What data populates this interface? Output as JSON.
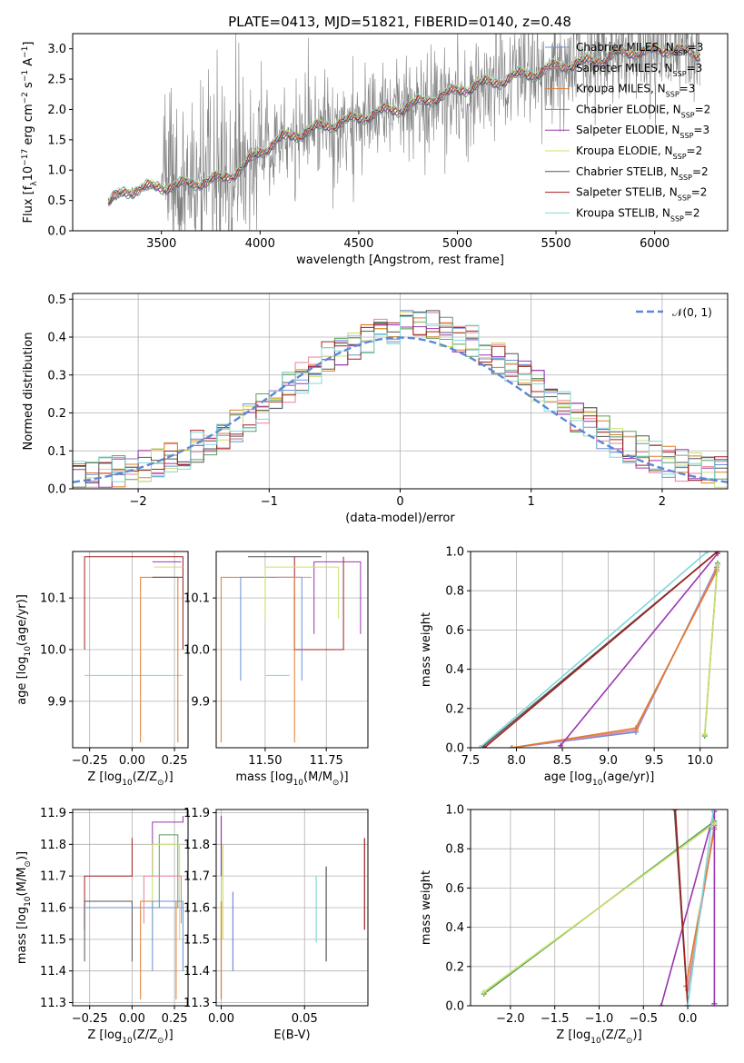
{
  "figure_title": "PLATE=0413, MJD=51821, FIBERID=0140, z=0.48",
  "colors": {
    "Chabrier MILES": "#6a8fd8",
    "Salpeter MILES": "#e8829a",
    "Kroupa MILES": "#e07b2a",
    "Chabrier ELODIE": "#5b9e5b",
    "Salpeter ELODIE": "#9b35b0",
    "Kroupa ELODIE": "#c8e06a",
    "Chabrier STELIB": "#555555",
    "Salpeter STELIB": "#a02020",
    "Kroupa STELIB": "#80d8d8",
    "data": "#808080",
    "normal": "#5b88d8"
  },
  "chart_data": [
    {
      "id": "spectrum",
      "type": "line",
      "xlabel": "wavelength [Angstrom, rest frame]",
      "ylabel": "Flux [f_λ10^-17 erg cm^-2 s^-1 A^-1]",
      "xlim": [
        3050,
        6370
      ],
      "ylim": [
        0,
        3.25
      ],
      "xticks": [
        3500,
        4000,
        4500,
        5000,
        5500,
        6000
      ],
      "yticks": [
        0.0,
        0.5,
        1.0,
        1.5,
        2.0,
        2.5,
        3.0
      ],
      "grid": false,
      "legend_position": "top-right",
      "legend": [
        {
          "model": "Chabrier MILES",
          "nssp": "3"
        },
        {
          "model": "Salpeter MILES",
          "nssp": "3"
        },
        {
          "model": "Kroupa MILES",
          "nssp": "3"
        },
        {
          "model": "Chabrier ELODIE",
          "nssp": "2"
        },
        {
          "model": "Salpeter ELODIE",
          "nssp": "3"
        },
        {
          "model": "Kroupa ELODIE",
          "nssp": "2"
        },
        {
          "model": "Chabrier STELIB",
          "nssp": "2"
        },
        {
          "model": "Salpeter STELIB",
          "nssp": "2"
        },
        {
          "model": "Kroupa STELIB",
          "nssp": "2"
        }
      ],
      "model_profile": {
        "x": [
          3230,
          3300,
          3400,
          3500,
          3600,
          3700,
          3800,
          3900,
          4000,
          4100,
          4200,
          4300,
          4400,
          4500,
          4600,
          4700,
          4800,
          4900,
          5000,
          5100,
          5200,
          5300,
          5400,
          5500,
          5600,
          5700,
          5800,
          5900,
          6000,
          6100,
          6200
        ],
        "y": [
          0.45,
          0.62,
          0.7,
          0.72,
          0.75,
          0.8,
          0.85,
          1.0,
          1.3,
          1.5,
          1.6,
          1.7,
          1.78,
          1.85,
          1.95,
          2.0,
          2.1,
          2.2,
          2.3,
          2.4,
          2.45,
          2.55,
          2.6,
          2.7,
          2.75,
          2.8,
          2.9,
          2.95,
          2.95,
          3.0,
          2.9
        ]
      },
      "data_range": [
        3230,
        6230
      ]
    },
    {
      "id": "residuals",
      "type": "line",
      "xlabel": "(data-model)/error",
      "ylabel": "Normed distribution",
      "xlim": [
        -2.5,
        2.5
      ],
      "ylim": [
        0,
        0.515
      ],
      "xticks": [
        -2,
        -1,
        0,
        1,
        2
      ],
      "yticks": [
        0.0,
        0.1,
        0.2,
        0.3,
        0.4,
        0.5
      ],
      "grid": true,
      "legend_position": "top-right",
      "legend": [
        {
          "label": "𝒩(0, 1)"
        }
      ],
      "bin_width": 0.1
    },
    {
      "id": "age-vs-Z",
      "type": "line",
      "xlabel": "Z [log10(Z/Z⊙)]",
      "ylabel": "age  [log10(age/yr)]",
      "xlim": [
        -0.35,
        0.33
      ],
      "ylim": [
        9.81,
        10.19
      ],
      "xticks": [
        -0.25,
        0.0,
        0.25
      ],
      "yticks": [
        9.9,
        10.0,
        10.1
      ],
      "grid": true
    },
    {
      "id": "age-vs-mass",
      "type": "line",
      "xlabel": "mass [log10(M/M⊙)]",
      "ylabel": "",
      "xlim": [
        11.3,
        11.92
      ],
      "ylim": [
        9.81,
        10.19
      ],
      "xticks": [
        11.5,
        11.75
      ],
      "yticks": [
        9.9,
        10.0,
        10.1
      ],
      "grid": true
    },
    {
      "id": "weight-vs-age",
      "type": "line",
      "xlabel": "age  [log10(age/yr)]",
      "ylabel": "mass weight",
      "xlim": [
        7.5,
        10.3
      ],
      "ylim": [
        0,
        1.0
      ],
      "xticks": [
        7.5,
        8.0,
        8.5,
        9.0,
        9.5,
        10.0
      ],
      "yticks": [
        0.0,
        0.2,
        0.4,
        0.6,
        0.8,
        1.0
      ],
      "grid": true,
      "series": [
        {
          "model": "Chabrier MILES",
          "x": [
            7.95,
            9.3,
            10.18
          ],
          "y": [
            0.0,
            0.08,
            0.92
          ]
        },
        {
          "model": "Salpeter MILES",
          "x": [
            7.95,
            9.3,
            10.18
          ],
          "y": [
            0.0,
            0.09,
            0.91
          ]
        },
        {
          "model": "Kroupa MILES",
          "x": [
            7.95,
            9.3,
            10.18
          ],
          "y": [
            0.0,
            0.1,
            0.9
          ]
        },
        {
          "model": "Chabrier ELODIE",
          "x": [
            10.05,
            10.19
          ],
          "y": [
            0.06,
            0.94
          ]
        },
        {
          "model": "Salpeter ELODIE",
          "x": [
            8.48,
            10.19
          ],
          "y": [
            0.01,
            0.99
          ]
        },
        {
          "model": "Kroupa ELODIE",
          "x": [
            10.05,
            10.19
          ],
          "y": [
            0.07,
            0.93
          ]
        },
        {
          "model": "Chabrier STELIB",
          "x": [
            7.62,
            10.19
          ],
          "y": [
            0.0,
            1.0
          ]
        },
        {
          "model": "Salpeter STELIB",
          "x": [
            7.65,
            10.19
          ],
          "y": [
            0.0,
            1.0
          ]
        },
        {
          "model": "Kroupa STELIB",
          "x": [
            7.6,
            10.08
          ],
          "y": [
            0.0,
            1.0
          ]
        }
      ]
    },
    {
      "id": "mass-vs-Z",
      "type": "line",
      "xlabel": "Z [log10(Z/Z⊙)]",
      "ylabel": "mass [log10(M/M⊙)]",
      "xlim": [
        -0.35,
        0.33
      ],
      "ylim": [
        11.29,
        11.91
      ],
      "xticks": [
        -0.25,
        0.0,
        0.25
      ],
      "yticks": [
        11.3,
        11.4,
        11.5,
        11.6,
        11.7,
        11.8,
        11.9
      ],
      "grid": true
    },
    {
      "id": "mass-vs-EBV",
      "type": "line",
      "xlabel": "E(B-V)",
      "ylabel": "",
      "xlim": [
        -0.003,
        0.088
      ],
      "ylim": [
        11.29,
        11.91
      ],
      "xticks": [
        0.0,
        0.05
      ],
      "yticks": [
        11.3,
        11.4,
        11.5,
        11.6,
        11.7,
        11.8,
        11.9
      ],
      "grid": true,
      "series": [
        {
          "model": "Chabrier MILES",
          "x": [
            0.007,
            0.007
          ],
          "y": [
            11.4,
            11.65
          ]
        },
        {
          "model": "Kroupa MILES",
          "x": [
            0.0,
            0.0
          ],
          "y": [
            11.31,
            11.62
          ]
        },
        {
          "model": "Salpeter ELODIE",
          "x": [
            0.0,
            0.0
          ],
          "y": [
            11.7,
            11.89
          ]
        },
        {
          "model": "Kroupa ELODIE",
          "x": [
            0.001,
            0.001
          ],
          "y": [
            11.5,
            11.8
          ]
        },
        {
          "model": "Kroupa STELIB",
          "x": [
            0.057,
            0.057
          ],
          "y": [
            11.49,
            11.7
          ]
        },
        {
          "model": "Chabrier STELIB",
          "x": [
            0.063,
            0.063
          ],
          "y": [
            11.43,
            11.73
          ]
        },
        {
          "model": "Salpeter STELIB",
          "x": [
            0.086,
            0.086
          ],
          "y": [
            11.53,
            11.82
          ]
        }
      ]
    },
    {
      "id": "weight-vs-Z",
      "type": "line",
      "xlabel": "Z [log10(Z/Z⊙)]",
      "ylabel": "mass weight",
      "xlim": [
        -2.45,
        0.45
      ],
      "ylim": [
        0,
        1.0
      ],
      "xticks": [
        -2.0,
        -1.5,
        -1.0,
        -0.5,
        0.0
      ],
      "yticks": [
        0.0,
        0.2,
        0.4,
        0.6,
        0.8,
        1.0
      ],
      "grid": true,
      "series": [
        {
          "model": "Chabrier MILES",
          "x": [
            0.0,
            0.3
          ],
          "y": [
            0.08,
            0.92
          ]
        },
        {
          "model": "Salpeter MILES",
          "x": [
            0.0,
            0.3
          ],
          "y": [
            0.09,
            0.91
          ]
        },
        {
          "model": "Kroupa MILES",
          "x": [
            -0.02,
            0.3
          ],
          "y": [
            0.1,
            0.9
          ]
        },
        {
          "model": "Chabrier ELODIE",
          "x": [
            -2.3,
            0.3
          ],
          "y": [
            0.06,
            0.94
          ]
        },
        {
          "model": "Salpeter ELODIE",
          "x": [
            -0.3,
            0.3,
            0.3
          ],
          "y": [
            0.0,
            0.99,
            0.01
          ]
        },
        {
          "model": "Kroupa ELODIE",
          "x": [
            -2.3,
            0.3
          ],
          "y": [
            0.07,
            0.93
          ]
        },
        {
          "model": "Chabrier STELIB",
          "x": [
            -0.15,
            0.0
          ],
          "y": [
            1.0,
            0.0
          ]
        },
        {
          "model": "Salpeter STELIB",
          "x": [
            -0.14,
            0.0
          ],
          "y": [
            1.0,
            0.0
          ]
        },
        {
          "model": "Kroupa STELIB",
          "x": [
            0.0,
            0.29
          ],
          "y": [
            0.0,
            1.0
          ]
        }
      ]
    }
  ],
  "box_segments": {
    "age_vs_Z": [
      {
        "model": "Salpeter STELIB",
        "z": -0.28,
        "age": 10.0,
        "zmax": 0.3,
        "agemax": 10.18
      },
      {
        "model": "Kroupa STELIB",
        "z": -0.28,
        "age": 9.95,
        "zmax": 0.3,
        "agemax": 9.95
      },
      {
        "model": "Chabrier MILES",
        "z": 0.12,
        "age": 10.14,
        "zmax": 0.3,
        "agemax": 10.14
      },
      {
        "model": "Kroupa MILES",
        "z": 0.05,
        "age": 9.82,
        "zmax": 0.27,
        "agemax": 10.14
      },
      {
        "model": "Salpeter ELODIE",
        "z": 0.12,
        "age": 10.17,
        "zmax": 0.29,
        "agemax": 10.17
      },
      {
        "model": "Kroupa ELODIE",
        "z": 0.13,
        "age": 10.16,
        "zmax": 0.3,
        "agemax": 10.16
      },
      {
        "model": "Chabrier STELIB",
        "z": 0.12,
        "age": 10.14,
        "zmax": 0.3,
        "agemax": 10.14
      }
    ],
    "age_vs_mass": [
      {
        "model": "Salpeter STELIB",
        "m": 11.62,
        "age": 10.0,
        "mmax": 11.82,
        "agemax": 10.18
      },
      {
        "model": "Chabrier STELIB",
        "m": 11.43,
        "age": 10.18,
        "mmax": 11.73,
        "agemax": 10.18
      },
      {
        "model": "Kroupa MILES",
        "m": 11.32,
        "age": 10.14,
        "mmax": 11.62,
        "agemax": 9.82
      },
      {
        "model": "Chabrier MILES",
        "m": 11.4,
        "age": 10.14,
        "mmax": 11.65,
        "agemax": 9.94
      },
      {
        "model": "Salpeter MILES",
        "m": 11.55,
        "age": 10.14,
        "mmax": 11.69,
        "agemax": 10.14
      },
      {
        "model": "Kroupa STELIB",
        "m": 11.5,
        "age": 9.95,
        "mmax": 11.6,
        "agemax": 9.95
      },
      {
        "model": "Salpeter ELODIE",
        "m": 11.7,
        "age": 10.17,
        "mmax": 11.89,
        "agemax": 10.03
      },
      {
        "model": "Kroupa ELODIE",
        "m": 11.5,
        "age": 10.16,
        "mmax": 11.8,
        "agemax": 10.06
      },
      {
        "model": "Chabrier ELODIE",
        "m": 11.6,
        "age": 9.94,
        "mmax": 11.6,
        "agemax": 9.94
      }
    ],
    "mass_vs_Z": [
      {
        "model": "Salpeter STELIB",
        "z": -0.28,
        "m": 11.53,
        "zmax": 0.0,
        "mmax": 11.82,
        "mlevel": 11.7
      },
      {
        "model": "Chabrier STELIB",
        "z": -0.28,
        "m": 11.43,
        "zmax": 0.0,
        "mmax": 11.62,
        "mlevel": 11.62
      },
      {
        "model": "Kroupa STELIB",
        "z": -0.28,
        "m": 11.6,
        "zmax": 0.3,
        "mmax": 11.6,
        "mlevel": 11.6
      },
      {
        "model": "Chabrier MILES",
        "z": -0.28,
        "m": 11.6,
        "zmax": 0.3,
        "mmax": 11.6,
        "mlevel": 11.6
      },
      {
        "model": "Salpeter ELODIE",
        "z": 0.12,
        "m": 11.7,
        "zmax": 0.3,
        "mmax": 11.89,
        "mlevel": 11.87
      },
      {
        "model": "Chabrier ELODIE",
        "z": 0.16,
        "m": 11.6,
        "zmax": 0.27,
        "mmax": 11.83,
        "mlevel": 11.83
      },
      {
        "model": "Kroupa ELODIE",
        "z": 0.12,
        "m": 11.5,
        "zmax": 0.28,
        "mmax": 11.8,
        "mlevel": 11.8
      },
      {
        "model": "Salpeter MILES",
        "z": 0.07,
        "m": 11.55,
        "zmax": 0.29,
        "mmax": 11.7,
        "mlevel": 11.7
      },
      {
        "model": "Kroupa MILES",
        "z": 0.05,
        "m": 11.31,
        "zmax": 0.26,
        "mmax": 11.62,
        "mlevel": 11.62
      },
      {
        "model": "Chabrier MILES",
        "z": 0.12,
        "m": 11.4,
        "zmax": 0.3,
        "mmax": 11.62,
        "mlevel": 11.62
      }
    ]
  }
}
